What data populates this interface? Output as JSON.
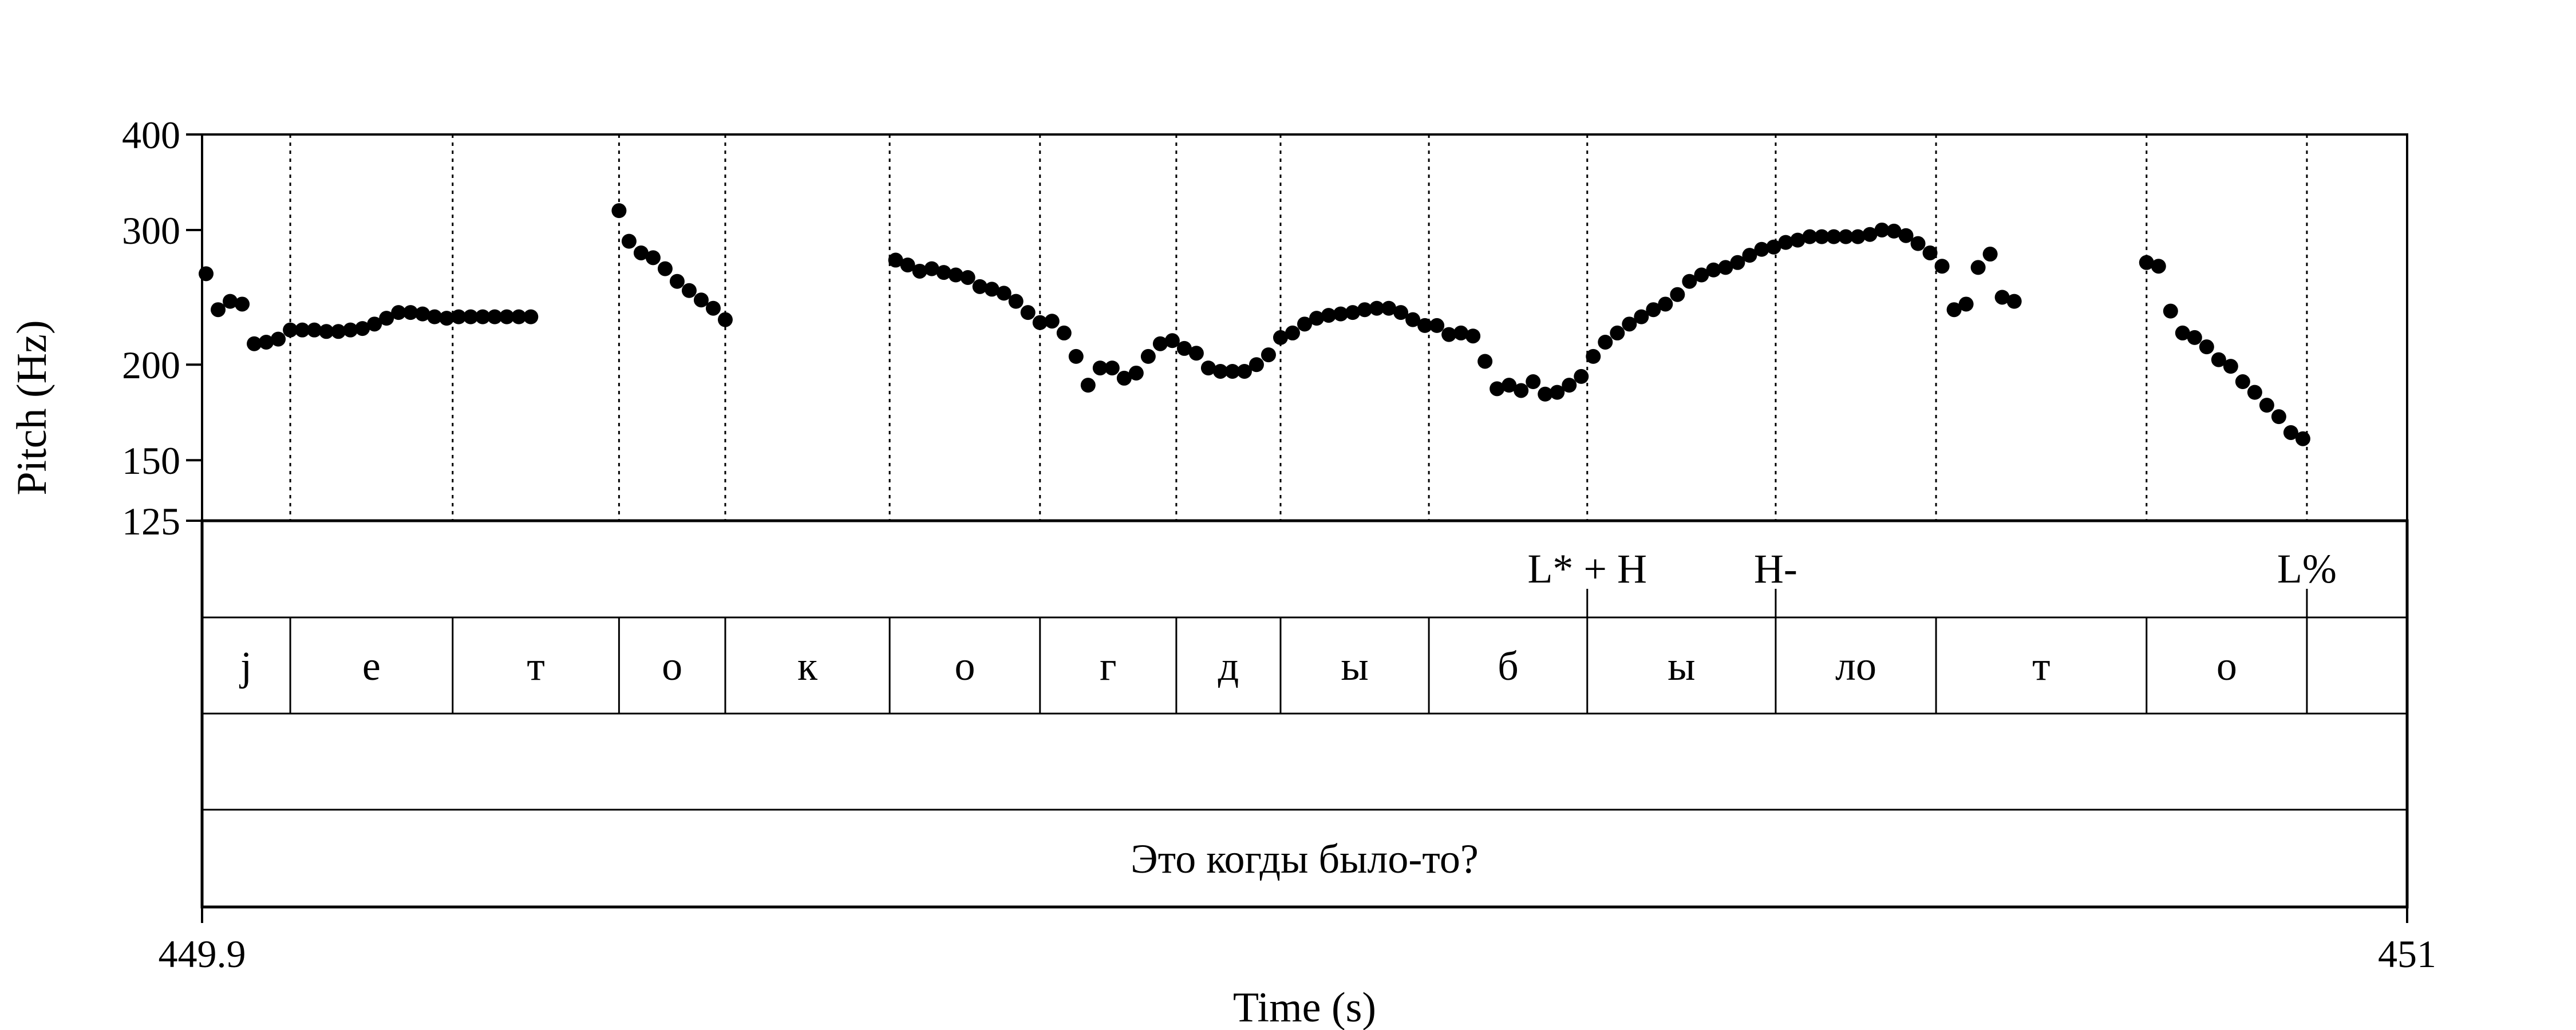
{
  "chart_data": {
    "type": "scatter",
    "xlabel": "Time (s)",
    "ylabel": "Pitch (Hz)",
    "xlim": [
      449.9,
      451
    ],
    "x_ticks": [
      "449.9",
      "451"
    ],
    "ylim": [
      125,
      400
    ],
    "y_scale": "log",
    "y_ticks": [
      "400",
      "300",
      "200",
      "150",
      "125"
    ],
    "y_tick_values": [
      400,
      300,
      200,
      150,
      125
    ],
    "boundaries": [
      449.944,
      450.025,
      450.108,
      450.161,
      450.243,
      450.318,
      450.386,
      450.438,
      450.512,
      450.591,
      450.685,
      450.765,
      450.87,
      450.95
    ],
    "tones": [
      {
        "label": "L* + H",
        "t": 450.591
      },
      {
        "label": "H-",
        "t": 450.685
      },
      {
        "label": "L%",
        "t": 450.95
      }
    ],
    "segments": [
      {
        "label": "j",
        "start": 449.9,
        "end": 449.944
      },
      {
        "label": "е",
        "start": 449.944,
        "end": 450.025
      },
      {
        "label": "т",
        "start": 450.025,
        "end": 450.108
      },
      {
        "label": "о",
        "start": 450.108,
        "end": 450.161
      },
      {
        "label": "к",
        "start": 450.161,
        "end": 450.243
      },
      {
        "label": "о",
        "start": 450.243,
        "end": 450.318
      },
      {
        "label": "г",
        "start": 450.318,
        "end": 450.386
      },
      {
        "label": "д",
        "start": 450.386,
        "end": 450.438
      },
      {
        "label": "ы",
        "start": 450.438,
        "end": 450.512
      },
      {
        "label": "б",
        "start": 450.512,
        "end": 450.591
      },
      {
        "label": "ы",
        "start": 450.591,
        "end": 450.685
      },
      {
        "label": "ло",
        "start": 450.685,
        "end": 450.765
      },
      {
        "label": "т",
        "start": 450.765,
        "end": 450.87
      },
      {
        "label": "о",
        "start": 450.87,
        "end": 450.95
      }
    ],
    "sentence": "Это когды было-то?",
    "points": [
      [
        449.902,
        263
      ],
      [
        449.908,
        236
      ],
      [
        449.914,
        242
      ],
      [
        449.92,
        240
      ],
      [
        449.926,
        213
      ],
      [
        449.932,
        214
      ],
      [
        449.938,
        216
      ],
      [
        449.944,
        222
      ],
      [
        449.95,
        222
      ],
      [
        449.956,
        222
      ],
      [
        449.962,
        221
      ],
      [
        449.968,
        221
      ],
      [
        449.974,
        222
      ],
      [
        449.98,
        223
      ],
      [
        449.986,
        226
      ],
      [
        449.992,
        230
      ],
      [
        449.998,
        234
      ],
      [
        450.004,
        234
      ],
      [
        450.01,
        233
      ],
      [
        450.016,
        231
      ],
      [
        450.022,
        230
      ],
      [
        450.028,
        231
      ],
      [
        450.034,
        231
      ],
      [
        450.04,
        231
      ],
      [
        450.046,
        231
      ],
      [
        450.052,
        231
      ],
      [
        450.058,
        231
      ],
      [
        450.064,
        231
      ],
      [
        450.108,
        318
      ],
      [
        450.113,
        290
      ],
      [
        450.119,
        280
      ],
      [
        450.125,
        276
      ],
      [
        450.131,
        267
      ],
      [
        450.137,
        257
      ],
      [
        450.143,
        250
      ],
      [
        450.149,
        243
      ],
      [
        450.155,
        237
      ],
      [
        450.161,
        229
      ],
      [
        450.246,
        274
      ],
      [
        450.252,
        270
      ],
      [
        450.258,
        265
      ],
      [
        450.264,
        267
      ],
      [
        450.27,
        264
      ],
      [
        450.276,
        262
      ],
      [
        450.282,
        260
      ],
      [
        450.288,
        253
      ],
      [
        450.294,
        251
      ],
      [
        450.3,
        248
      ],
      [
        450.306,
        242
      ],
      [
        450.312,
        234
      ],
      [
        450.318,
        227
      ],
      [
        450.324,
        228
      ],
      [
        450.33,
        220
      ],
      [
        450.336,
        205
      ],
      [
        450.342,
        188
      ],
      [
        450.348,
        198
      ],
      [
        450.354,
        198
      ],
      [
        450.36,
        192
      ],
      [
        450.366,
        195
      ],
      [
        450.372,
        205
      ],
      [
        450.378,
        213
      ],
      [
        450.384,
        215
      ],
      [
        450.39,
        210
      ],
      [
        450.396,
        207
      ],
      [
        450.402,
        198
      ],
      [
        450.408,
        196
      ],
      [
        450.414,
        196
      ],
      [
        450.42,
        196
      ],
      [
        450.426,
        200
      ],
      [
        450.432,
        206
      ],
      [
        450.438,
        217
      ],
      [
        450.444,
        220
      ],
      [
        450.45,
        226
      ],
      [
        450.456,
        230
      ],
      [
        450.462,
        232
      ],
      [
        450.468,
        233
      ],
      [
        450.474,
        234
      ],
      [
        450.48,
        236
      ],
      [
        450.486,
        237
      ],
      [
        450.492,
        237
      ],
      [
        450.498,
        234
      ],
      [
        450.504,
        229
      ],
      [
        450.51,
        225
      ],
      [
        450.516,
        225
      ],
      [
        450.522,
        219
      ],
      [
        450.528,
        220
      ],
      [
        450.534,
        218
      ],
      [
        450.54,
        202
      ],
      [
        450.546,
        186
      ],
      [
        450.552,
        188
      ],
      [
        450.558,
        185
      ],
      [
        450.564,
        190
      ],
      [
        450.57,
        183
      ],
      [
        450.576,
        184
      ],
      [
        450.582,
        188
      ],
      [
        450.588,
        193
      ],
      [
        450.594,
        205
      ],
      [
        450.6,
        214
      ],
      [
        450.606,
        220
      ],
      [
        450.612,
        226
      ],
      [
        450.618,
        231
      ],
      [
        450.624,
        236
      ],
      [
        450.63,
        240
      ],
      [
        450.636,
        247
      ],
      [
        450.642,
        257
      ],
      [
        450.648,
        262
      ],
      [
        450.654,
        266
      ],
      [
        450.66,
        268
      ],
      [
        450.666,
        272
      ],
      [
        450.672,
        278
      ],
      [
        450.678,
        283
      ],
      [
        450.684,
        285
      ],
      [
        450.69,
        289
      ],
      [
        450.696,
        291
      ],
      [
        450.702,
        294
      ],
      [
        450.708,
        294
      ],
      [
        450.714,
        294
      ],
      [
        450.72,
        294
      ],
      [
        450.726,
        294
      ],
      [
        450.732,
        296
      ],
      [
        450.738,
        300
      ],
      [
        450.744,
        299
      ],
      [
        450.75,
        295
      ],
      [
        450.756,
        288
      ],
      [
        450.762,
        280
      ],
      [
        450.768,
        269
      ],
      [
        450.774,
        236
      ],
      [
        450.78,
        240
      ],
      [
        450.786,
        268
      ],
      [
        450.792,
        279
      ],
      [
        450.798,
        245
      ],
      [
        450.804,
        242
      ],
      [
        450.87,
        272
      ],
      [
        450.876,
        269
      ],
      [
        450.882,
        235
      ],
      [
        450.888,
        220
      ],
      [
        450.894,
        217
      ],
      [
        450.9,
        211
      ],
      [
        450.906,
        203
      ],
      [
        450.912,
        199
      ],
      [
        450.918,
        190
      ],
      [
        450.924,
        184
      ],
      [
        450.93,
        177
      ],
      [
        450.936,
        171
      ],
      [
        450.942,
        163
      ],
      [
        450.948,
        160
      ]
    ]
  }
}
